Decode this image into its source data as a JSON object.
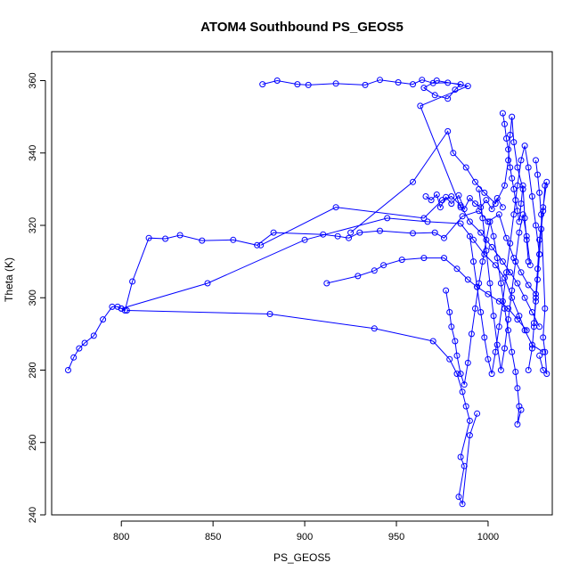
{
  "chart_data": {
    "type": "scatter",
    "title": "ATOM4 Southbound PS_GEOS5",
    "xlabel": "PS_GEOS5",
    "ylabel": "Theta (K)",
    "xlim": [
      762,
      1035
    ],
    "ylim": [
      240,
      368
    ],
    "xticks": [
      800,
      850,
      900,
      950,
      1000
    ],
    "yticks": [
      240,
      260,
      280,
      300,
      320,
      340,
      360
    ],
    "grid": false,
    "markers": "open-circle",
    "lines_connected": true,
    "colors": {
      "series": "#0000ff",
      "axis": "#000000",
      "background": "#ffffff"
    },
    "series": [
      {
        "points": [
          [
            771,
            280
          ],
          [
            774,
            283.5
          ],
          [
            777,
            286
          ],
          [
            780,
            287.5
          ],
          [
            785,
            289.5
          ],
          [
            790,
            294
          ],
          [
            795,
            297.5
          ],
          [
            798,
            297.5
          ],
          [
            800,
            297
          ],
          [
            802,
            296.5
          ],
          [
            806,
            304.5
          ],
          [
            815,
            316.5
          ],
          [
            824,
            316.3
          ],
          [
            832,
            317.3
          ],
          [
            844,
            315.8
          ],
          [
            861,
            316
          ],
          [
            874,
            314.5
          ],
          [
            883,
            318
          ],
          [
            910,
            317.5
          ],
          [
            918,
            317
          ],
          [
            924,
            316.5
          ],
          [
            930,
            318
          ],
          [
            941,
            318.5
          ],
          [
            959,
            317.8
          ],
          [
            971,
            318
          ],
          [
            976,
            316.5
          ],
          [
            986,
            322.5
          ],
          [
            995,
            324
          ],
          [
            1000,
            321
          ],
          [
            1006,
            323
          ],
          [
            1010,
            316.5
          ],
          [
            1014,
            311
          ],
          [
            1018,
            307
          ],
          [
            1022,
            303.5
          ],
          [
            1026,
            301
          ]
        ]
      },
      {
        "points": [
          [
            800,
            297
          ],
          [
            847,
            304
          ],
          [
            900,
            316
          ],
          [
            945,
            322
          ],
          [
            967,
            321
          ],
          [
            985,
            320.5
          ],
          [
            992,
            316
          ],
          [
            998,
            312
          ],
          [
            1004,
            309
          ],
          [
            1009,
            305.5
          ],
          [
            1013,
            300
          ],
          [
            1017,
            295
          ],
          [
            1020,
            291
          ],
          [
            1024,
            287
          ],
          [
            1030,
            285
          ]
        ]
      },
      {
        "points": [
          [
            803,
            296.5
          ],
          [
            881,
            295.5
          ],
          [
            938,
            291.5
          ],
          [
            970,
            288
          ],
          [
            979,
            283
          ],
          [
            983,
            279
          ],
          [
            986,
            274
          ],
          [
            988,
            270
          ],
          [
            990,
            266
          ],
          [
            985,
            256
          ],
          [
            987,
            253.5
          ],
          [
            984,
            245
          ],
          [
            986,
            243
          ],
          [
            990,
            262
          ],
          [
            994,
            268
          ]
        ]
      },
      {
        "points": [
          [
            876,
            314.5
          ],
          [
            917,
            325
          ],
          [
            965,
            322
          ],
          [
            975,
            327
          ],
          [
            980,
            328
          ],
          [
            985,
            325.5
          ],
          [
            990,
            321
          ],
          [
            996,
            318
          ],
          [
            1002,
            314
          ],
          [
            1008,
            310
          ],
          [
            1012,
            307
          ],
          [
            1016,
            304
          ],
          [
            1020,
            300
          ],
          [
            1024,
            296
          ],
          [
            1028,
            292
          ]
        ]
      },
      {
        "points": [
          [
            912,
            304
          ],
          [
            929,
            306
          ],
          [
            938,
            307.5
          ],
          [
            943,
            309
          ],
          [
            953,
            310.5
          ],
          [
            965,
            311
          ],
          [
            976,
            311
          ],
          [
            983,
            308
          ],
          [
            989,
            305
          ],
          [
            994,
            303
          ],
          [
            1000,
            301
          ],
          [
            1006,
            299
          ],
          [
            1011,
            297
          ],
          [
            1016,
            294
          ],
          [
            1021,
            291
          ]
        ]
      },
      {
        "points": [
          [
            925,
            318
          ],
          [
            959,
            332
          ],
          [
            978,
            346
          ],
          [
            981,
            340
          ],
          [
            988,
            336
          ],
          [
            993,
            332
          ],
          [
            998,
            329
          ],
          [
            1004,
            326
          ],
          [
            1009,
            331
          ],
          [
            1011,
            338
          ],
          [
            1012,
            345
          ],
          [
            1013,
            350
          ],
          [
            1014,
            343
          ],
          [
            1016,
            336
          ],
          [
            1019,
            330
          ]
        ]
      },
      {
        "points": [
          [
            877,
            359
          ],
          [
            885,
            360
          ],
          [
            896,
            359
          ],
          [
            902,
            358.8
          ],
          [
            917,
            359.2
          ],
          [
            933,
            358.8
          ],
          [
            941,
            360.2
          ],
          [
            951,
            359.5
          ],
          [
            959,
            359
          ],
          [
            964,
            360.2
          ],
          [
            970,
            359.3
          ],
          [
            978,
            359.4
          ],
          [
            985,
            359
          ],
          [
            982,
            357.5
          ],
          [
            978,
            355
          ],
          [
            971,
            356
          ],
          [
            965,
            358
          ],
          [
            972,
            360
          ],
          [
            989,
            358.5
          ],
          [
            963,
            353
          ],
          [
            985,
            325
          ]
        ]
      },
      {
        "points": [
          [
            966,
            328
          ],
          [
            969,
            327
          ],
          [
            972,
            328.5
          ],
          [
            974,
            325
          ],
          [
            977,
            327.8
          ],
          [
            980,
            326
          ],
          [
            984,
            328.3
          ],
          [
            987,
            324.5
          ],
          [
            990,
            327.5
          ],
          [
            993,
            326
          ],
          [
            996,
            325
          ],
          [
            999,
            327
          ],
          [
            1002,
            324.5
          ],
          [
            1005,
            327.5
          ],
          [
            1008,
            325
          ]
        ]
      },
      {
        "points": [
          [
            977,
            302
          ],
          [
            979,
            296
          ],
          [
            980,
            292
          ],
          [
            982,
            288
          ],
          [
            983,
            284
          ],
          [
            985,
            279
          ],
          [
            987,
            276
          ],
          [
            989,
            282
          ],
          [
            991,
            290
          ],
          [
            993,
            297
          ],
          [
            995,
            304
          ],
          [
            997,
            310
          ],
          [
            999,
            316
          ],
          [
            1001,
            321
          ],
          [
            1003,
            317
          ],
          [
            1005,
            311
          ],
          [
            1007,
            304
          ],
          [
            1009,
            297
          ],
          [
            1011,
            291
          ],
          [
            1013,
            285
          ],
          [
            1015,
            279.5
          ],
          [
            1016,
            275
          ],
          [
            1017,
            270
          ],
          [
            1016,
            265
          ],
          [
            1018,
            269
          ]
        ]
      },
      {
        "points": [
          [
            1022,
            280
          ],
          [
            1024,
            286
          ],
          [
            1025,
            292
          ],
          [
            1026,
            299
          ],
          [
            1027,
            305
          ],
          [
            1028,
            312
          ],
          [
            1029,
            319
          ],
          [
            1030,
            324
          ],
          [
            1031,
            331
          ],
          [
            1032,
            332
          ],
          [
            1030,
            325
          ],
          [
            1028,
            316
          ],
          [
            1027,
            308
          ],
          [
            1026,
            300
          ],
          [
            1025,
            293
          ]
        ]
      },
      {
        "points": [
          [
            990,
            317
          ],
          [
            992,
            310
          ],
          [
            994,
            303
          ],
          [
            996,
            296
          ],
          [
            998,
            289
          ],
          [
            1000,
            283
          ],
          [
            1002,
            279
          ],
          [
            1004,
            285
          ],
          [
            1006,
            292
          ],
          [
            1008,
            299
          ],
          [
            1010,
            307
          ],
          [
            1012,
            315
          ],
          [
            1014,
            323
          ],
          [
            1016,
            331
          ],
          [
            1018,
            338
          ],
          [
            1020,
            342
          ],
          [
            1022,
            336
          ],
          [
            1024,
            328
          ],
          [
            1026,
            320
          ],
          [
            1028,
            312
          ]
        ]
      },
      {
        "points": [
          [
            1026,
            338
          ],
          [
            1027,
            334
          ],
          [
            1028,
            329
          ],
          [
            1029,
            323
          ],
          [
            1031,
            297
          ],
          [
            1030,
            289
          ],
          [
            1031,
            285
          ],
          [
            1032,
            279
          ],
          [
            1030,
            280
          ],
          [
            1028,
            284
          ]
        ]
      },
      {
        "points": [
          [
            1008,
            351
          ],
          [
            1009,
            348
          ],
          [
            1010,
            344
          ],
          [
            1011,
            341
          ],
          [
            1012,
            336
          ],
          [
            1013,
            333
          ],
          [
            1014,
            330
          ],
          [
            1015,
            327
          ],
          [
            1016,
            324
          ],
          [
            1017,
            321
          ],
          [
            1018,
            326
          ],
          [
            1019,
            331
          ],
          [
            1020,
            322
          ],
          [
            1021,
            316
          ],
          [
            1022,
            310
          ]
        ]
      },
      {
        "points": [
          [
            995,
            330
          ],
          [
            997,
            322
          ],
          [
            999,
            313
          ],
          [
            1001,
            304
          ],
          [
            1003,
            295
          ],
          [
            1005,
            287
          ],
          [
            1007,
            280
          ],
          [
            1009,
            286
          ],
          [
            1011,
            294
          ],
          [
            1013,
            302
          ],
          [
            1015,
            310
          ],
          [
            1017,
            318
          ],
          [
            1019,
            323
          ],
          [
            1021,
            317
          ],
          [
            1023,
            309
          ]
        ]
      }
    ]
  }
}
